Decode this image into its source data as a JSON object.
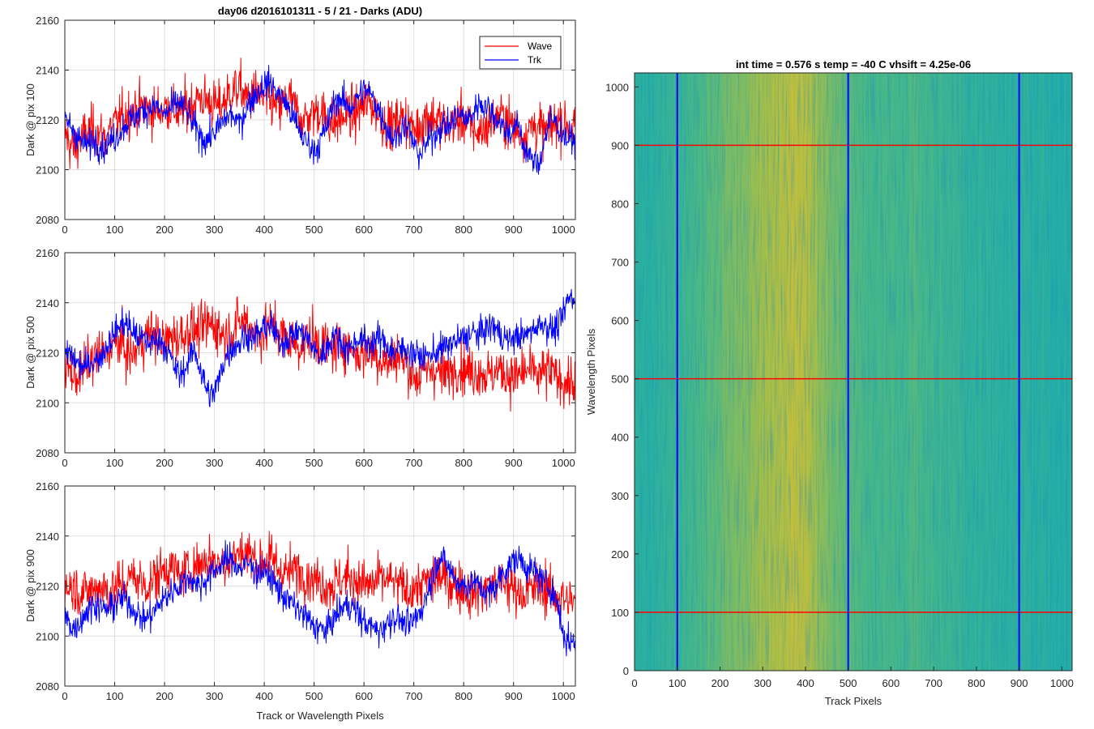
{
  "figure": {
    "title_left": "day06 d2016101311 - 5 / 21 - Darks (ADU)",
    "title_right": "int time = 0.576 s   temp = -40 C   vhsift = 4.25e-06",
    "xlabel_left": "Track or Wavelength Pixels"
  },
  "colors": {
    "wave": "#ff0000",
    "trk": "#0000ff",
    "grid": "#dedede",
    "axis": "#262626"
  },
  "chart_data": [
    {
      "type": "line",
      "ylabel": "Dark @ pix 100",
      "xlim": [
        0,
        1024
      ],
      "ylim": [
        2080,
        2160
      ],
      "xticks": [
        0,
        100,
        200,
        300,
        400,
        500,
        600,
        700,
        800,
        900,
        1000
      ],
      "yticks": [
        2080,
        2100,
        2120,
        2140,
        2160
      ],
      "grid": true,
      "legend": {
        "placement": "top-right",
        "entries": [
          "Wave",
          "Trk"
        ]
      },
      "series": [
        {
          "name": "Wave",
          "color": "#ff0000",
          "x_step": 10,
          "values": [
            2115,
            2110,
            2108,
            2112,
            2114,
            2115,
            2116,
            2114,
            2113,
            2115,
            2118,
            2120,
            2122,
            2123,
            2124,
            2124,
            2125,
            2124,
            2123,
            2124,
            2125,
            2126,
            2124,
            2122,
            2125,
            2126,
            2127,
            2129,
            2128,
            2127,
            2126,
            2125,
            2128,
            2130,
            2132,
            2133,
            2130,
            2128,
            2131,
            2130,
            2128,
            2127,
            2126,
            2124,
            2127,
            2129,
            2125,
            2122,
            2120,
            2121,
            2123,
            2124,
            2122,
            2120,
            2118,
            2120,
            2121,
            2123,
            2122,
            2124,
            2126,
            2127,
            2125,
            2122,
            2119,
            2117,
            2118,
            2120,
            2121,
            2118,
            2116,
            2117,
            2120,
            2122,
            2121,
            2120,
            2118,
            2117,
            2119,
            2120,
            2121,
            2118,
            2116,
            2115,
            2116,
            2118,
            2120,
            2122,
            2121,
            2119,
            2117,
            2115,
            2114,
            2116,
            2118,
            2117,
            2115,
            2116,
            2118,
            2120,
            2119,
            2118
          ]
        },
        {
          "name": "Trk",
          "color": "#0000ff",
          "x_step": 10,
          "values": [
            2120,
            2118,
            2115,
            2112,
            2110,
            2110,
            2112,
            2110,
            2109,
            2111,
            2113,
            2115,
            2118,
            2120,
            2121,
            2123,
            2124,
            2125,
            2126,
            2124,
            2122,
            2124,
            2126,
            2127,
            2125,
            2121,
            2117,
            2114,
            2112,
            2113,
            2115,
            2117,
            2120,
            2122,
            2121,
            2118,
            2123,
            2127,
            2130,
            2132,
            2134,
            2135,
            2133,
            2130,
            2128,
            2124,
            2120,
            2116,
            2112,
            2110,
            2108,
            2110,
            2115,
            2120,
            2127,
            2129,
            2127,
            2125,
            2126,
            2130,
            2132,
            2131,
            2128,
            2124,
            2120,
            2115,
            2112,
            2115,
            2118,
            2116,
            2110,
            2106,
            2108,
            2112,
            2114,
            2116,
            2118,
            2117,
            2120,
            2122,
            2121,
            2120,
            2123,
            2127,
            2126,
            2125,
            2122,
            2120,
            2117,
            2115,
            2116,
            2118,
            2110,
            2106,
            2103,
            2102,
            2110,
            2118,
            2120,
            2117,
            2114,
            2112
          ]
        }
      ]
    },
    {
      "type": "line",
      "ylabel": "Dark @ pix 500",
      "xlim": [
        0,
        1024
      ],
      "ylim": [
        2080,
        2160
      ],
      "xticks": [
        0,
        100,
        200,
        300,
        400,
        500,
        600,
        700,
        800,
        900,
        1000
      ],
      "yticks": [
        2080,
        2100,
        2120,
        2140,
        2160
      ],
      "grid": true,
      "series": [
        {
          "name": "Wave",
          "color": "#ff0000",
          "x_step": 10,
          "values": [
            2115,
            2113,
            2110,
            2112,
            2114,
            2116,
            2118,
            2119,
            2120,
            2122,
            2123,
            2124,
            2122,
            2118,
            2120,
            2123,
            2126,
            2128,
            2127,
            2125,
            2124,
            2126,
            2127,
            2126,
            2128,
            2130,
            2129,
            2128,
            2130,
            2132,
            2131,
            2129,
            2127,
            2128,
            2130,
            2132,
            2133,
            2131,
            2128,
            2127,
            2129,
            2131,
            2130,
            2128,
            2126,
            2125,
            2124,
            2123,
            2124,
            2126,
            2125,
            2124,
            2123,
            2121,
            2122,
            2123,
            2124,
            2122,
            2120,
            2119,
            2120,
            2121,
            2120,
            2118,
            2117,
            2116,
            2118,
            2119,
            2117,
            2114,
            2111,
            2110,
            2112,
            2113,
            2114,
            2112,
            2111,
            2112,
            2114,
            2115,
            2114,
            2113,
            2112,
            2113,
            2112,
            2111,
            2112,
            2113,
            2112,
            2111,
            2110,
            2111,
            2112,
            2113,
            2112,
            2111,
            2112,
            2113,
            2111,
            2110,
            2109,
            2108
          ]
        },
        {
          "name": "Trk",
          "color": "#0000ff",
          "x_step": 10,
          "values": [
            2118,
            2120,
            2117,
            2115,
            2114,
            2116,
            2117,
            2118,
            2121,
            2125,
            2128,
            2131,
            2132,
            2130,
            2128,
            2126,
            2125,
            2124,
            2125,
            2126,
            2123,
            2119,
            2114,
            2111,
            2113,
            2118,
            2121,
            2115,
            2108,
            2103,
            2104,
            2110,
            2117,
            2121,
            2123,
            2124,
            2126,
            2127,
            2126,
            2128,
            2130,
            2131,
            2128,
            2124,
            2125,
            2126,
            2128,
            2129,
            2127,
            2125,
            2121,
            2118,
            2120,
            2124,
            2127,
            2125,
            2123,
            2121,
            2124,
            2126,
            2125,
            2123,
            2125,
            2126,
            2124,
            2122,
            2120,
            2121,
            2122,
            2121,
            2120,
            2119,
            2118,
            2119,
            2120,
            2121,
            2122,
            2123,
            2124,
            2125,
            2126,
            2127,
            2128,
            2127,
            2129,
            2130,
            2131,
            2128,
            2126,
            2125,
            2126,
            2127,
            2126,
            2128,
            2130,
            2131,
            2132,
            2130,
            2129,
            2131,
            2135,
            2142
          ]
        }
      ]
    },
    {
      "type": "line",
      "ylabel": "Dark @ pix 900",
      "xlabel": "Track or Wavelength Pixels",
      "xlim": [
        0,
        1024
      ],
      "ylim": [
        2080,
        2160
      ],
      "xticks": [
        0,
        100,
        200,
        300,
        400,
        500,
        600,
        700,
        800,
        900,
        1000
      ],
      "yticks": [
        2080,
        2100,
        2120,
        2140,
        2160
      ],
      "grid": true,
      "series": [
        {
          "name": "Wave",
          "color": "#ff0000",
          "x_step": 10,
          "values": [
            2118,
            2120,
            2119,
            2118,
            2117,
            2118,
            2119,
            2120,
            2119,
            2118,
            2119,
            2120,
            2121,
            2123,
            2124,
            2122,
            2120,
            2121,
            2123,
            2125,
            2127,
            2128,
            2126,
            2124,
            2125,
            2127,
            2128,
            2129,
            2130,
            2131,
            2130,
            2129,
            2130,
            2131,
            2132,
            2133,
            2134,
            2133,
            2131,
            2129,
            2130,
            2131,
            2129,
            2127,
            2126,
            2125,
            2126,
            2127,
            2125,
            2124,
            2123,
            2122,
            2121,
            2120,
            2121,
            2122,
            2123,
            2124,
            2123,
            2122,
            2121,
            2120,
            2121,
            2122,
            2123,
            2122,
            2121,
            2120,
            2119,
            2118,
            2119,
            2120,
            2121,
            2122,
            2123,
            2124,
            2123,
            2122,
            2121,
            2120,
            2119,
            2118,
            2117,
            2118,
            2119,
            2120,
            2121,
            2122,
            2121,
            2120,
            2119,
            2118,
            2117,
            2118,
            2119,
            2120,
            2119,
            2118,
            2117,
            2116,
            2115,
            2114
          ]
        },
        {
          "name": "Trk",
          "color": "#0000ff",
          "x_step": 10,
          "values": [
            2108,
            2105,
            2103,
            2106,
            2109,
            2111,
            2113,
            2112,
            2110,
            2111,
            2113,
            2114,
            2115,
            2113,
            2110,
            2108,
            2107,
            2108,
            2110,
            2113,
            2115,
            2117,
            2119,
            2120,
            2122,
            2123,
            2122,
            2120,
            2122,
            2124,
            2126,
            2128,
            2130,
            2131,
            2129,
            2127,
            2128,
            2129,
            2127,
            2125,
            2126,
            2124,
            2121,
            2118,
            2116,
            2114,
            2112,
            2110,
            2108,
            2106,
            2104,
            2103,
            2102,
            2104,
            2107,
            2110,
            2112,
            2113,
            2111,
            2108,
            2106,
            2104,
            2103,
            2102,
            2104,
            2106,
            2108,
            2107,
            2105,
            2104,
            2106,
            2109,
            2113,
            2119,
            2126,
            2132,
            2130,
            2127,
            2124,
            2121,
            2120,
            2121,
            2122,
            2120,
            2118,
            2117,
            2119,
            2122,
            2126,
            2128,
            2130,
            2131,
            2129,
            2127,
            2126,
            2124,
            2122,
            2120,
            2117,
            2112,
            2100,
            2098
          ]
        }
      ]
    },
    {
      "type": "heatmap",
      "title": "int time = 0.576 s   temp = -40 C   vhsift = 4.25e-06",
      "xlabel": "Track Pixels",
      "ylabel": "Wavelength Pixels",
      "xlim": [
        0,
        1024
      ],
      "ylim": [
        0,
        1024
      ],
      "xticks": [
        0,
        100,
        200,
        300,
        400,
        500,
        600,
        700,
        800,
        900,
        1000
      ],
      "yticks": [
        0,
        100,
        200,
        300,
        400,
        500,
        600,
        700,
        800,
        900,
        1000
      ],
      "value_range": [
        2095,
        2140
      ],
      "column_profile_step": 16,
      "column_profile": [
        2113,
        2113,
        2113,
        2114,
        2114,
        2115,
        2116,
        2116,
        2117,
        2118,
        2120,
        2121,
        2122,
        2123,
        2124,
        2125,
        2126,
        2127,
        2128,
        2129,
        2130,
        2131,
        2133,
        2134,
        2133,
        2132,
        2130,
        2128,
        2126,
        2124,
        2122,
        2121,
        2120,
        2119,
        2119,
        2118,
        2118,
        2118,
        2118,
        2117,
        2118,
        2119,
        2118,
        2117,
        2116,
        2116,
        2115,
        2116,
        2115,
        2114,
        2114,
        2114,
        2113,
        2113,
        2113,
        2113,
        2113,
        2113,
        2113,
        2113,
        2113,
        2112,
        2112,
        2112,
        2112
      ],
      "vertical_lines": {
        "x": [
          100,
          500,
          900
        ],
        "color": "#0000ff"
      },
      "horizontal_lines": {
        "y": [
          100,
          500,
          900
        ],
        "color": "#ff0000"
      }
    }
  ]
}
